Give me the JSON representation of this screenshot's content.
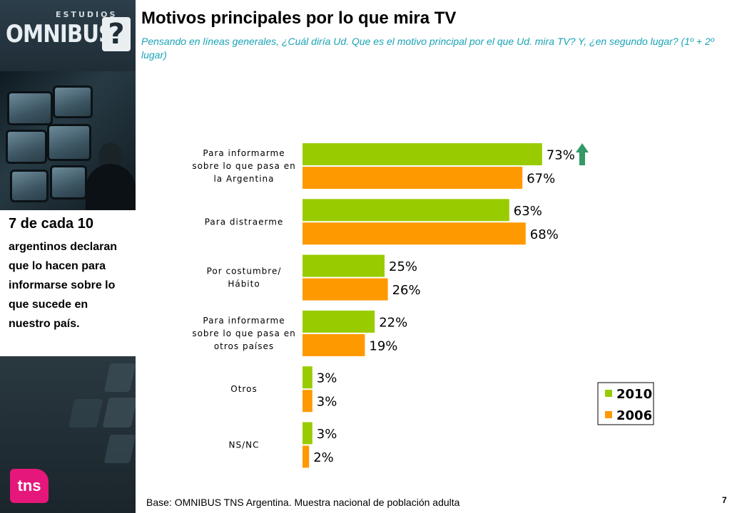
{
  "brand": {
    "estudios": "ESTUDIOS",
    "omnibus": "OMNIBUS",
    "mark": "?",
    "tns": "tns"
  },
  "header": {
    "title": "Motivos principales por lo que mira TV",
    "subtitle": "Pensando en líneas generales, ¿Cuál diría Ud. Que es el motivo principal por el que Ud. mira TV? Y, ¿en segundo lugar? (1º + 2º lugar)"
  },
  "callout": {
    "title": "7 de cada 10",
    "body": "argentinos declaran que lo hacen para informarse sobre lo que sucede en nuestro país."
  },
  "footer": {
    "base": "Base: OMNIBUS TNS Argentina. Muestra nacional de población adulta",
    "page": "7"
  },
  "colors": {
    "series_2010": "#99cc00",
    "series_2006": "#ff9900",
    "arrow": "#339966",
    "subtitle": "#1aa3b6"
  },
  "chart_data": {
    "type": "bar",
    "orientation": "horizontal",
    "title": "",
    "xlabel": "",
    "ylabel": "",
    "xlim": [
      0,
      100
    ],
    "grid": false,
    "legend_position": "bottom-right",
    "categories": [
      [
        "Para informarme",
        "sobre lo que pasa en",
        "la Argentina"
      ],
      [
        "Para distraerme"
      ],
      [
        "Por costumbre/",
        "Hábito"
      ],
      [
        "Para informarme",
        "sobre lo que pasa en",
        "otros países"
      ],
      [
        "Otros"
      ],
      [
        "NS/NC"
      ]
    ],
    "series": [
      {
        "name": "2010",
        "values": [
          73,
          63,
          25,
          22,
          3,
          3
        ],
        "labels": [
          "73%",
          "63%",
          "25%",
          "22%",
          "3%",
          "3%"
        ]
      },
      {
        "name": "2006",
        "values": [
          67,
          68,
          26,
          19,
          3,
          2
        ],
        "labels": [
          "67%",
          "68%",
          "26%",
          "19%",
          "3%",
          "2%"
        ]
      }
    ],
    "annotations": [
      {
        "type": "up-arrow",
        "category_index": 0,
        "series_index": 0
      }
    ]
  }
}
